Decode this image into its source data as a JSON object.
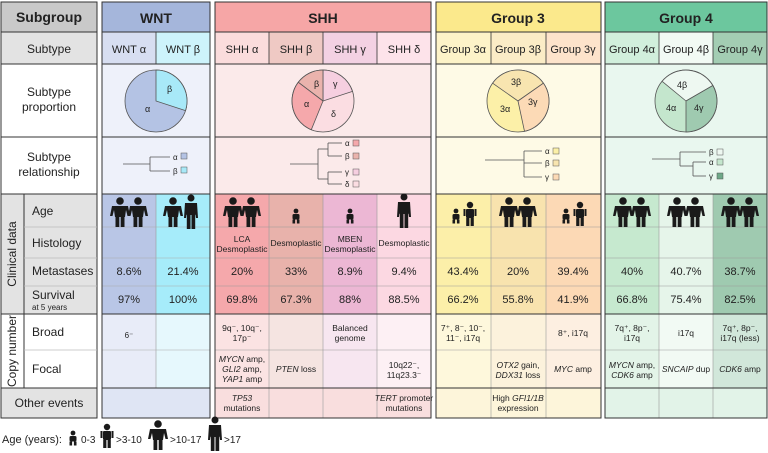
{
  "header": {
    "subgroup_label": "Subgroup",
    "groups": [
      "WNT",
      "SHH",
      "Group 3",
      "Group 4"
    ]
  },
  "row_labels": {
    "subtype": "Subtype",
    "proportion_1": "Subtype",
    "proportion_2": "proportion",
    "relationship_1": "Subtype",
    "relationship_2": "relationship",
    "clinical_data": "Clinical data",
    "age": "Age",
    "histology": "Histology",
    "metastases": "Metastases",
    "survival": "Survival",
    "survival_sub": "at 5 years",
    "copy_number": "Copy number",
    "broad": "Broad",
    "focal": "Focal",
    "other_events": "Other events"
  },
  "subtypes": [
    "WNT α",
    "WNT β",
    "SHH α",
    "SHH β",
    "SHH γ",
    "SHH δ",
    "Group 3α",
    "Group 3β",
    "Group 3γ",
    "Group 4α",
    "Group 4β",
    "Group 4γ"
  ],
  "pies": {
    "wnt": [
      "α",
      "β"
    ],
    "shh": [
      "β",
      "γ",
      "α",
      "δ"
    ],
    "g3": [
      "3β",
      "3α",
      "3γ"
    ],
    "g4": [
      "4β",
      "4α",
      "4γ"
    ]
  },
  "tree_labels": {
    "wnt": [
      "α",
      "β"
    ],
    "shh": [
      "α",
      "β",
      "γ",
      "δ"
    ],
    "g3": [
      "α",
      "β",
      "γ"
    ],
    "g4": [
      "β",
      "α",
      "γ"
    ]
  },
  "histology": {
    "shh_a_1": "LCA",
    "shh_a_2": "Desmoplastic",
    "shh_b": "Desmoplastic",
    "shh_g_1": "MBEN",
    "shh_g_2": "Desmoplastic",
    "shh_d": "Desmoplastic"
  },
  "metastases": [
    "8.6%",
    "21.4%",
    "20%",
    "33%",
    "8.9%",
    "9.4%",
    "43.4%",
    "20%",
    "39.4%",
    "40%",
    "40.7%",
    "38.7%"
  ],
  "survival": [
    "97%",
    "100%",
    "69.8%",
    "67.3%",
    "88%",
    "88.5%",
    "66.2%",
    "55.8%",
    "41.9%",
    "66.8%",
    "75.4%",
    "82.5%"
  ],
  "broad": {
    "wnt_a": "6⁻",
    "shh_a_1": "9q⁻, 10q⁻,",
    "shh_a_2": "17p⁻",
    "shh_g_1": "Balanced",
    "shh_g_2": "genome",
    "g3a_1": "7⁺, 8⁻, 10⁻,",
    "g3a_2": "11⁻, i17q",
    "g3g": "8⁺, i17q",
    "g4a_1": "7q⁺, 8p⁻,",
    "g4a_2": "i17q",
    "g4b": "i17q",
    "g4g_1": "7q⁺, 8p⁻,",
    "g4g_2": "i17q (less)"
  },
  "focal": {
    "shh_a_1a": "MYCN",
    "shh_a_1b": " amp,",
    "shh_a_2a": "GLI2",
    "shh_a_2b": " amp,",
    "shh_a_3a": "YAP1",
    "shh_a_3b": " amp",
    "shh_b_a": "PTEN",
    "shh_b_b": " loss",
    "shh_d_1": "10q22⁻,",
    "shh_d_2": "11q23.3⁻",
    "g3b_1a": "OTX2",
    "g3b_1b": " gain,",
    "g3b_2a": "DDX31",
    "g3b_2b": " loss",
    "g3g_a": "MYC",
    "g3g_b": " amp",
    "g4a_1a": "MYCN",
    "g4a_1b": " amp,",
    "g4a_2a": "CDK6",
    "g4a_2b": " amp",
    "g4b_a": "SNCAIP",
    "g4b_b": " dup",
    "g4g_a": "CDK6",
    "g4g_b": " amp"
  },
  "other_events": {
    "shh_a_1": "TP53",
    "shh_a_2": "mutations",
    "shh_d_1a": "TERT",
    "shh_d_1b": " promoter",
    "shh_d_2": "mutations",
    "g3b_1": "High ",
    "g3b_1i": "GFI1/1B",
    "g3b_2": "expression"
  },
  "legend": {
    "title": "Age (years):",
    "items": [
      "0-3",
      ">3-10",
      ">10-17",
      ">17"
    ]
  },
  "colors": {
    "wnt_header": "#a5b6db",
    "shh_header": "#f6a6a6",
    "g3_header": "#fbe98c",
    "g4_header": "#6cc79e",
    "label_bg": "#dcdcdc"
  }
}
